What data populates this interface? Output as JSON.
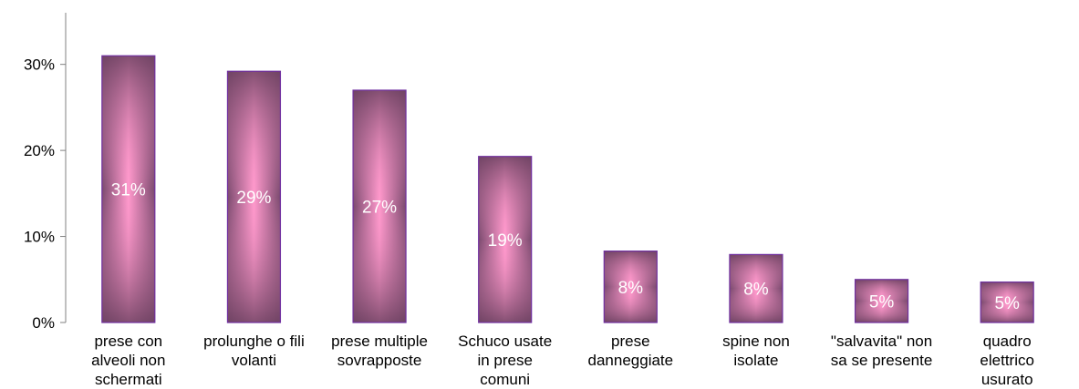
{
  "chart_data": {
    "type": "bar",
    "title": "",
    "xlabel": "",
    "ylabel": "",
    "ylim": [
      0,
      36
    ],
    "yticks": [
      0,
      10,
      20,
      30
    ],
    "ytick_labels": [
      "0%",
      "10%",
      "20%",
      "30%"
    ],
    "grid": false,
    "legend": "none",
    "categories": [
      "prese con alveoli non schermati",
      "prolunghe o fili volanti",
      "prese multiple sovrapposte",
      "Schuco usate in prese comuni",
      "prese danneggiate",
      "spine non isolate",
      "\"salvavita\" non sa se presente",
      "quadro elettrico usurato"
    ],
    "category_lines": [
      [
        "prese con",
        "alveoli non",
        "schermati"
      ],
      [
        "prolunghe o fili",
        "volanti"
      ],
      [
        "prese multiple",
        "sovrapposte"
      ],
      [
        "Schuco usate",
        "in prese",
        "comuni"
      ],
      [
        "prese",
        "danneggiate"
      ],
      [
        "spine non",
        "isolate"
      ],
      [
        "\"salvavita\" non",
        "sa se presente"
      ],
      [
        "quadro",
        "elettrico",
        "usurato"
      ]
    ],
    "values": [
      31,
      29.2,
      27,
      19.3,
      8.3,
      7.9,
      5,
      4.7
    ],
    "data_labels": [
      "31%",
      "29%",
      "27%",
      "19%",
      "8%",
      "8%",
      "5%",
      "5%"
    ],
    "colors": {
      "bar_edge": "#7a4a6e",
      "bar_center": "#ff99cc",
      "bar_border": "#7030a0",
      "axis": "#808080"
    }
  }
}
